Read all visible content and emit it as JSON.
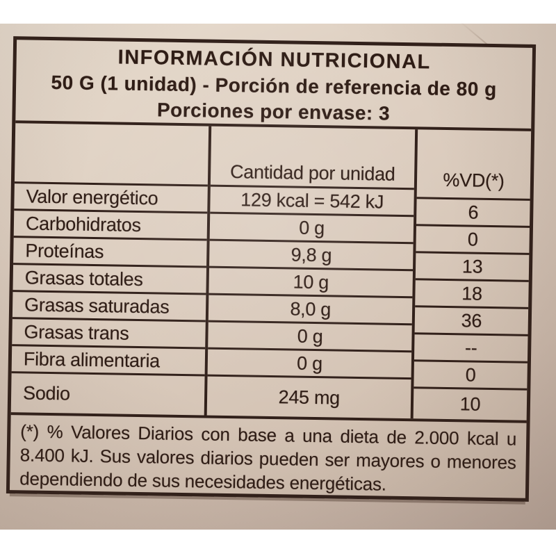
{
  "label": {
    "title": "INFORMACIÓN NUTRICIONAL",
    "subtitle": "50 G (1 unidad) - Porción de referencia de 80 g",
    "servings": "Porciones por envase: 3",
    "table": {
      "amount_header": "Cantidad por unidad",
      "dv_header": "%VD(*)",
      "rows": [
        {
          "name": "Valor energético",
          "amount": "129 kcal = 542 kJ",
          "dv": "6"
        },
        {
          "name": "Carbohidratos",
          "amount": "0 g",
          "dv": "0"
        },
        {
          "name": "Proteínas",
          "amount": "9,8 g",
          "dv": "13"
        },
        {
          "name": "Grasas totales",
          "amount": "10 g",
          "dv": "18"
        },
        {
          "name": "Grasas saturadas",
          "amount": "8,0 g",
          "dv": "36"
        },
        {
          "name": "Grasas trans",
          "amount": "0 g",
          "dv": "--"
        },
        {
          "name": "Fibra alimentaria",
          "amount": "0 g",
          "dv": "0"
        },
        {
          "name": "Sodio",
          "amount": "245 mg",
          "dv": "10"
        }
      ]
    },
    "footnote": "(*) % Valores Diarios con base a una dieta de 2.000 kcal u 8.400 kJ. Sus valores diarios pueden ser mayores o menores dependiendo de sus necesidades energéticas.",
    "colors": {
      "ink": "#31201a",
      "label_paper": "#ddcec0",
      "package_surface": "#d3c2b5",
      "page_margin": "#ffffff"
    }
  }
}
